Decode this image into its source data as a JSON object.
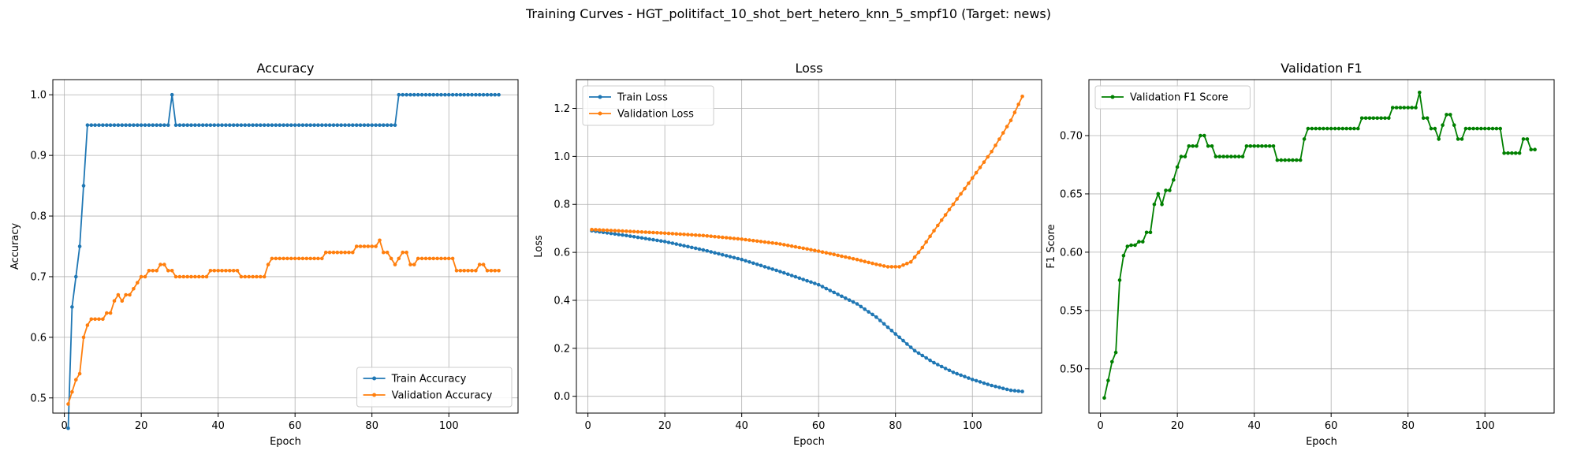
{
  "figure": {
    "suptitle": "Training Curves - HGT_politifact_10_shot_bert_hetero_knn_5_smpf10 (Target: news)"
  },
  "colors": {
    "blue": "#1f77b4",
    "orange": "#ff7f0e",
    "green": "#008000",
    "grid": "#b0b0b0"
  },
  "chart_data": [
    {
      "type": "line",
      "title": "Accuracy",
      "xlabel": "Epoch",
      "ylabel": "Accuracy",
      "xlim": [
        -3,
        118
      ],
      "ylim": [
        0.475,
        1.025
      ],
      "xticks": [
        0,
        20,
        40,
        60,
        80,
        100
      ],
      "yticks": [
        0.5,
        0.6,
        0.7,
        0.8,
        0.9,
        1.0
      ],
      "ytick_decimals": 1,
      "grid": true,
      "legend_position": "lower-right",
      "series": [
        {
          "name": "Train Accuracy",
          "color": "#1f77b4",
          "segments": [
            {
              "from": 1,
              "to": 1,
              "value": 0.45
            },
            {
              "from": 2,
              "to": 2,
              "value": 0.65
            },
            {
              "from": 3,
              "to": 3,
              "value": 0.7
            },
            {
              "from": 4,
              "to": 4,
              "value": 0.75
            },
            {
              "from": 5,
              "to": 5,
              "value": 0.85
            },
            {
              "from": 6,
              "to": 27,
              "value": 0.95
            },
            {
              "from": 28,
              "to": 28,
              "value": 1.0
            },
            {
              "from": 29,
              "to": 86,
              "value": 0.95
            },
            {
              "from": 87,
              "to": 113,
              "value": 1.0
            }
          ]
        },
        {
          "name": "Validation Accuracy",
          "color": "#ff7f0e",
          "segments": [
            {
              "from": 1,
              "to": 1,
              "value": 0.49
            },
            {
              "from": 2,
              "to": 2,
              "value": 0.51
            },
            {
              "from": 3,
              "to": 3,
              "value": 0.53
            },
            {
              "from": 4,
              "to": 4,
              "value": 0.54
            },
            {
              "from": 5,
              "to": 5,
              "value": 0.6
            },
            {
              "from": 6,
              "to": 6,
              "value": 0.62
            },
            {
              "from": 7,
              "to": 10,
              "value": 0.63
            },
            {
              "from": 11,
              "to": 12,
              "value": 0.64
            },
            {
              "from": 13,
              "to": 13,
              "value": 0.66
            },
            {
              "from": 14,
              "to": 14,
              "value": 0.67
            },
            {
              "from": 15,
              "to": 15,
              "value": 0.66
            },
            {
              "from": 16,
              "to": 17,
              "value": 0.67
            },
            {
              "from": 18,
              "to": 18,
              "value": 0.68
            },
            {
              "from": 19,
              "to": 19,
              "value": 0.69
            },
            {
              "from": 20,
              "to": 21,
              "value": 0.7
            },
            {
              "from": 22,
              "to": 24,
              "value": 0.71
            },
            {
              "from": 25,
              "to": 26,
              "value": 0.72
            },
            {
              "from": 27,
              "to": 28,
              "value": 0.71
            },
            {
              "from": 29,
              "to": 37,
              "value": 0.7
            },
            {
              "from": 38,
              "to": 45,
              "value": 0.71
            },
            {
              "from": 46,
              "to": 52,
              "value": 0.7
            },
            {
              "from": 53,
              "to": 53,
              "value": 0.72
            },
            {
              "from": 54,
              "to": 67,
              "value": 0.73
            },
            {
              "from": 68,
              "to": 75,
              "value": 0.74
            },
            {
              "from": 76,
              "to": 81,
              "value": 0.75
            },
            {
              "from": 82,
              "to": 82,
              "value": 0.76
            },
            {
              "from": 83,
              "to": 84,
              "value": 0.74
            },
            {
              "from": 85,
              "to": 85,
              "value": 0.73
            },
            {
              "from": 86,
              "to": 86,
              "value": 0.72
            },
            {
              "from": 87,
              "to": 87,
              "value": 0.73
            },
            {
              "from": 88,
              "to": 89,
              "value": 0.74
            },
            {
              "from": 90,
              "to": 91,
              "value": 0.72
            },
            {
              "from": 92,
              "to": 101,
              "value": 0.73
            },
            {
              "from": 102,
              "to": 107,
              "value": 0.71
            },
            {
              "from": 108,
              "to": 109,
              "value": 0.72
            },
            {
              "from": 110,
              "to": 110,
              "value": 0.71
            },
            {
              "from": 111,
              "to": 113,
              "value": 0.71
            }
          ]
        }
      ]
    },
    {
      "type": "line",
      "title": "Loss",
      "xlabel": "Epoch",
      "ylabel": "Loss",
      "xlim": [
        -3,
        118
      ],
      "ylim": [
        -0.07,
        1.32
      ],
      "xticks": [
        0,
        20,
        40,
        60,
        80,
        100
      ],
      "yticks": [
        0.0,
        0.2,
        0.4,
        0.6,
        0.8,
        1.0,
        1.2
      ],
      "ytick_decimals": 1,
      "grid": true,
      "legend_position": "upper-left",
      "series": [
        {
          "name": "Train Loss",
          "color": "#1f77b4",
          "keypoints": [
            [
              1,
              0.69
            ],
            [
              10,
              0.67
            ],
            [
              20,
              0.645
            ],
            [
              30,
              0.61
            ],
            [
              40,
              0.57
            ],
            [
              50,
              0.52
            ],
            [
              60,
              0.465
            ],
            [
              70,
              0.385
            ],
            [
              75,
              0.33
            ],
            [
              80,
              0.26
            ],
            [
              85,
              0.19
            ],
            [
              90,
              0.14
            ],
            [
              95,
              0.1
            ],
            [
              100,
              0.07
            ],
            [
              105,
              0.045
            ],
            [
              110,
              0.025
            ],
            [
              113,
              0.02
            ]
          ]
        },
        {
          "name": "Validation Loss",
          "color": "#ff7f0e",
          "keypoints": [
            [
              1,
              0.695
            ],
            [
              10,
              0.688
            ],
            [
              20,
              0.68
            ],
            [
              30,
              0.67
            ],
            [
              40,
              0.655
            ],
            [
              50,
              0.635
            ],
            [
              60,
              0.605
            ],
            [
              70,
              0.57
            ],
            [
              75,
              0.55
            ],
            [
              78,
              0.54
            ],
            [
              81,
              0.54
            ],
            [
              84,
              0.56
            ],
            [
              87,
              0.62
            ],
            [
              90,
              0.69
            ],
            [
              95,
              0.8
            ],
            [
              100,
              0.91
            ],
            [
              105,
              1.02
            ],
            [
              110,
              1.15
            ],
            [
              113,
              1.25
            ]
          ]
        }
      ]
    },
    {
      "type": "line",
      "title": "Validation F1",
      "xlabel": "Epoch",
      "ylabel": "F1 Score",
      "xlim": [
        -3,
        118
      ],
      "ylim": [
        0.462,
        0.748
      ],
      "xticks": [
        0,
        20,
        40,
        60,
        80,
        100
      ],
      "yticks": [
        0.5,
        0.55,
        0.6,
        0.65,
        0.7
      ],
      "ytick_decimals": 2,
      "grid": true,
      "legend_position": "upper-left",
      "series": [
        {
          "name": "Validation F1 Score",
          "color": "#008000",
          "segments": [
            {
              "from": 1,
              "to": 1,
              "value": 0.475
            },
            {
              "from": 2,
              "to": 2,
              "value": 0.49
            },
            {
              "from": 3,
              "to": 3,
              "value": 0.506
            },
            {
              "from": 4,
              "to": 4,
              "value": 0.514
            },
            {
              "from": 5,
              "to": 5,
              "value": 0.576
            },
            {
              "from": 6,
              "to": 6,
              "value": 0.597
            },
            {
              "from": 7,
              "to": 7,
              "value": 0.605
            },
            {
              "from": 8,
              "to": 9,
              "value": 0.606
            },
            {
              "from": 10,
              "to": 11,
              "value": 0.609
            },
            {
              "from": 12,
              "to": 13,
              "value": 0.617
            },
            {
              "from": 14,
              "to": 14,
              "value": 0.641
            },
            {
              "from": 15,
              "to": 15,
              "value": 0.65
            },
            {
              "from": 16,
              "to": 16,
              "value": 0.641
            },
            {
              "from": 17,
              "to": 18,
              "value": 0.653
            },
            {
              "from": 19,
              "to": 19,
              "value": 0.662
            },
            {
              "from": 20,
              "to": 20,
              "value": 0.673
            },
            {
              "from": 21,
              "to": 22,
              "value": 0.682
            },
            {
              "from": 23,
              "to": 25,
              "value": 0.691
            },
            {
              "from": 26,
              "to": 27,
              "value": 0.7
            },
            {
              "from": 28,
              "to": 29,
              "value": 0.691
            },
            {
              "from": 30,
              "to": 37,
              "value": 0.682
            },
            {
              "from": 38,
              "to": 45,
              "value": 0.691
            },
            {
              "from": 46,
              "to": 52,
              "value": 0.679
            },
            {
              "from": 53,
              "to": 53,
              "value": 0.697
            },
            {
              "from": 54,
              "to": 67,
              "value": 0.706
            },
            {
              "from": 68,
              "to": 75,
              "value": 0.715
            },
            {
              "from": 76,
              "to": 82,
              "value": 0.724
            },
            {
              "from": 83,
              "to": 83,
              "value": 0.737
            },
            {
              "from": 84,
              "to": 85,
              "value": 0.715
            },
            {
              "from": 86,
              "to": 87,
              "value": 0.706
            },
            {
              "from": 88,
              "to": 88,
              "value": 0.697
            },
            {
              "from": 89,
              "to": 89,
              "value": 0.709
            },
            {
              "from": 90,
              "to": 91,
              "value": 0.718
            },
            {
              "from": 92,
              "to": 92,
              "value": 0.709
            },
            {
              "from": 93,
              "to": 94,
              "value": 0.697
            },
            {
              "from": 95,
              "to": 104,
              "value": 0.706
            },
            {
              "from": 105,
              "to": 109,
              "value": 0.685
            },
            {
              "from": 110,
              "to": 111,
              "value": 0.697
            },
            {
              "from": 112,
              "to": 113,
              "value": 0.688
            }
          ]
        }
      ]
    }
  ]
}
